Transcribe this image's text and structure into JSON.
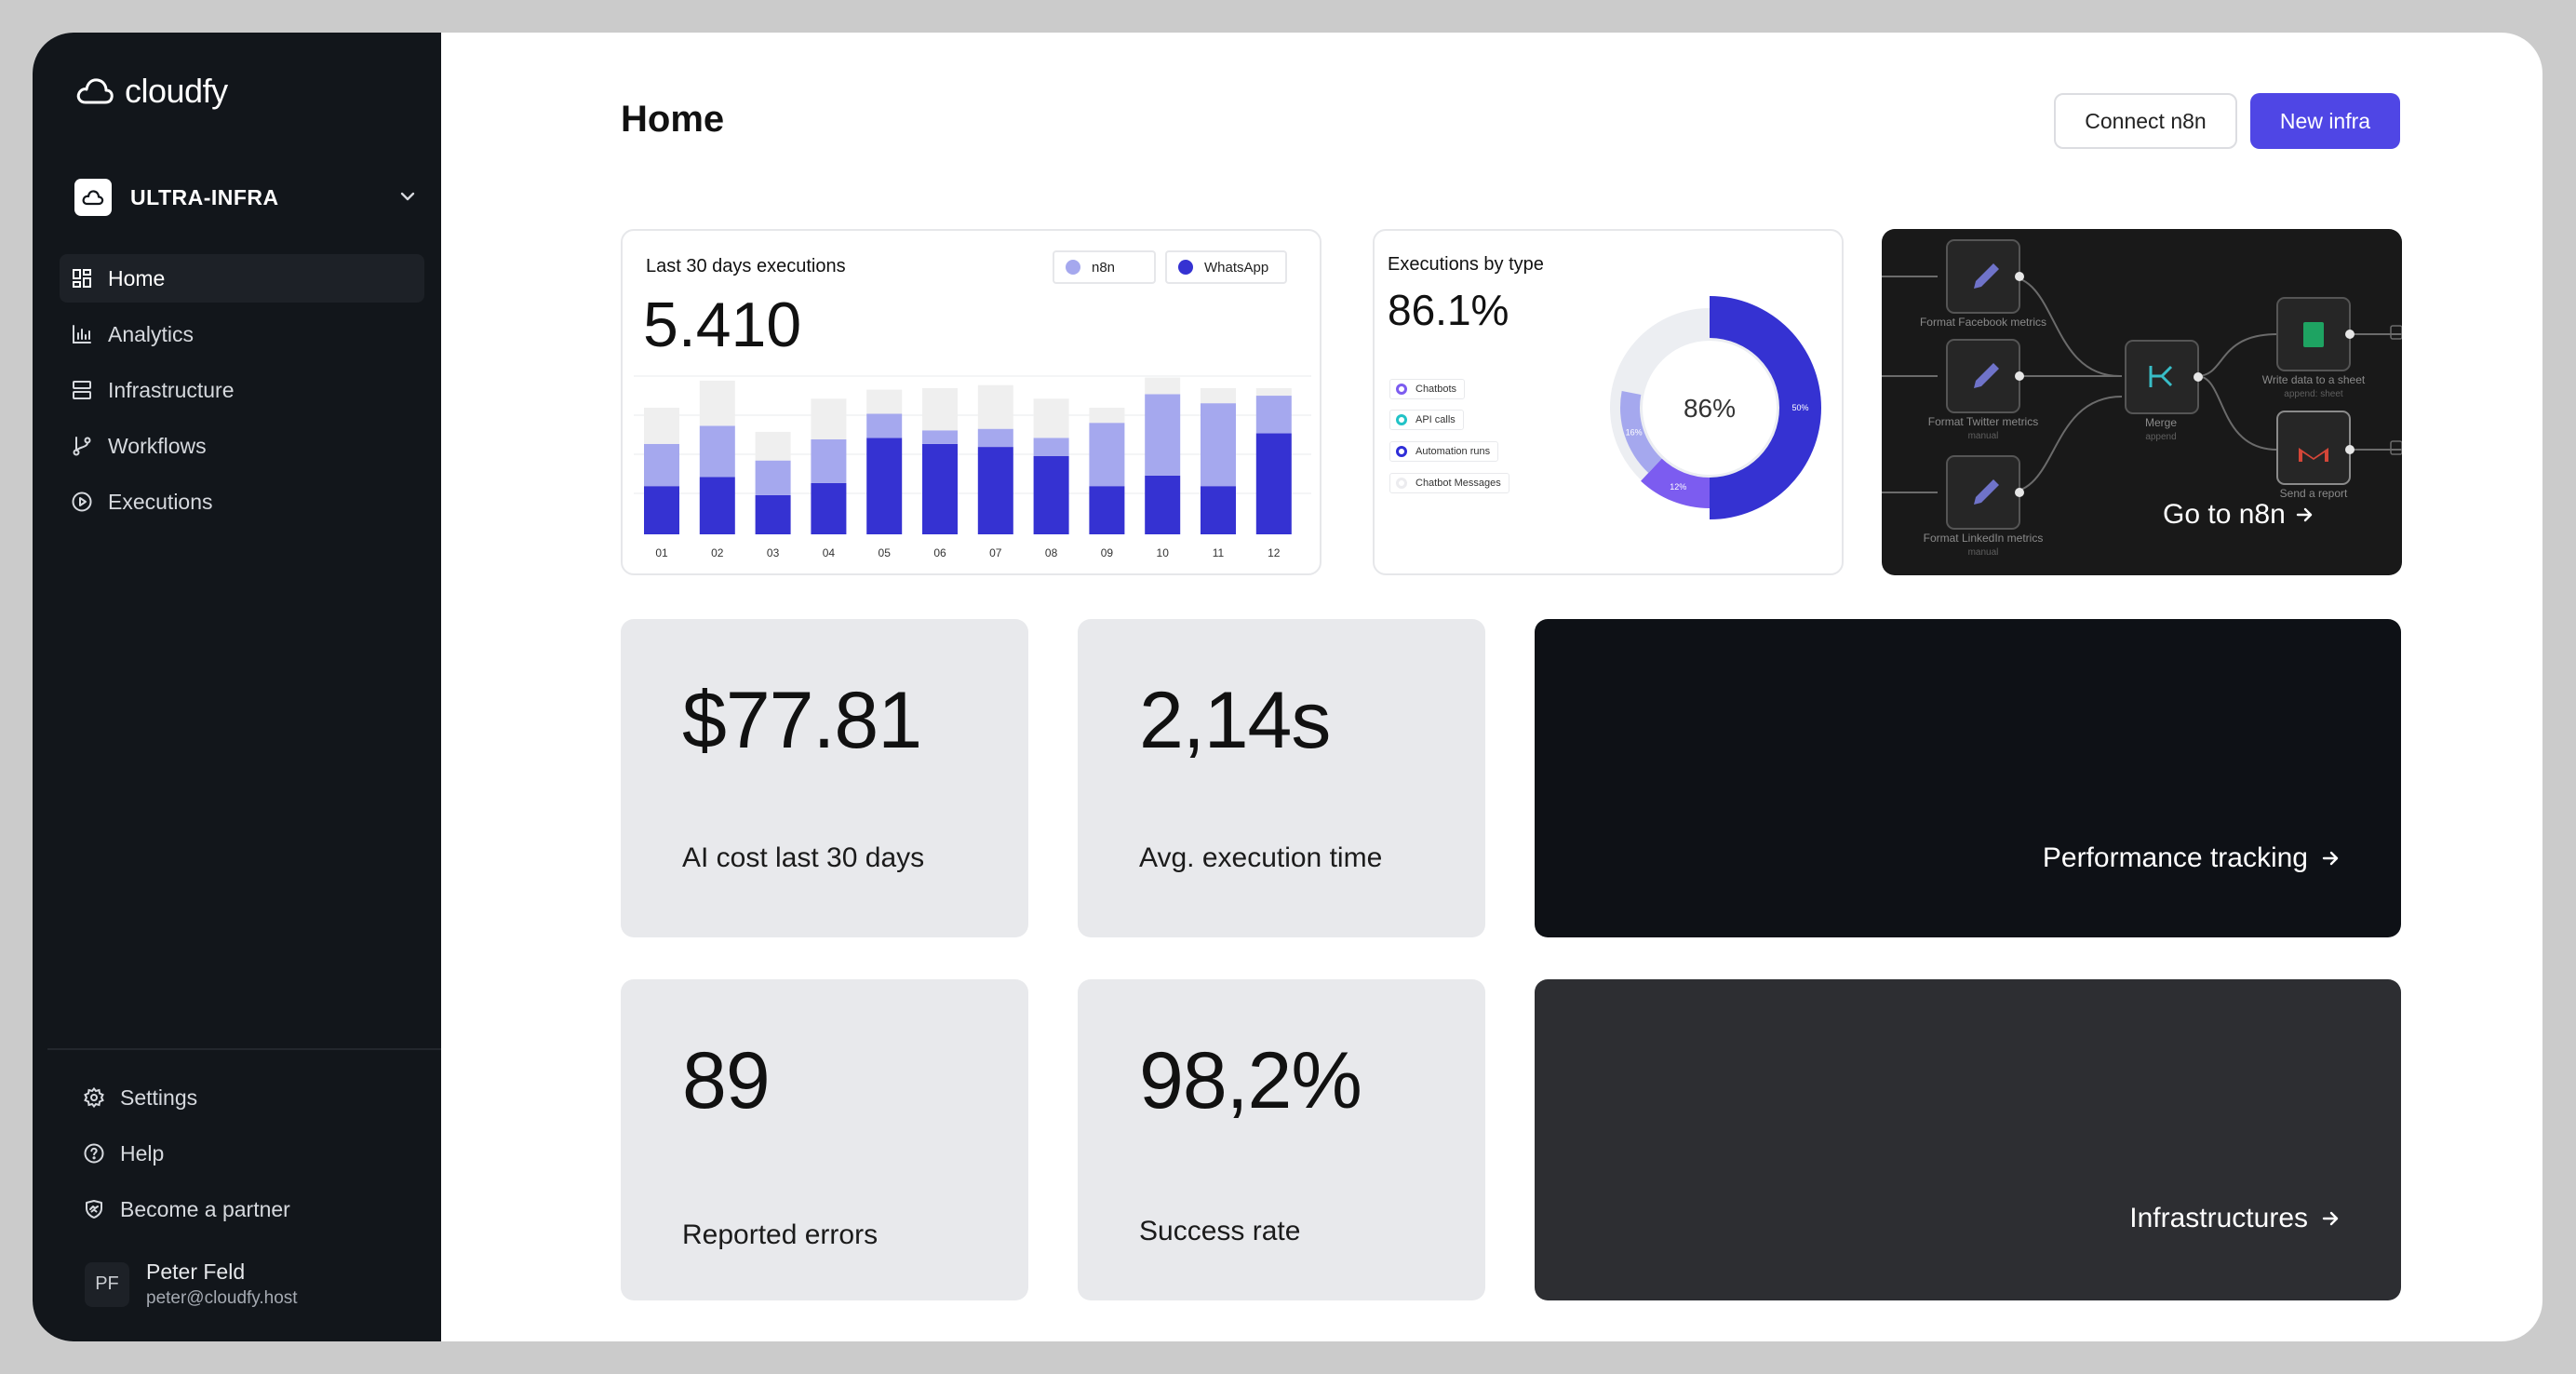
{
  "app": {
    "name": "cloudfy"
  },
  "org": {
    "name": "ULTRA-INFRA"
  },
  "nav": {
    "items": [
      {
        "label": "Home",
        "icon": "home-grid-icon",
        "active": true
      },
      {
        "label": "Analytics",
        "icon": "bar-chart-icon"
      },
      {
        "label": "Infrastructure",
        "icon": "server-icon"
      },
      {
        "label": "Workflows",
        "icon": "git-branch-icon"
      },
      {
        "label": "Executions",
        "icon": "play-circle-icon"
      }
    ],
    "bottom": [
      {
        "label": "Settings",
        "icon": "gear-icon"
      },
      {
        "label": "Help",
        "icon": "help-circle-icon"
      },
      {
        "label": "Become a partner",
        "icon": "handshake-icon"
      }
    ]
  },
  "user": {
    "initials": "PF",
    "name": "Peter Feld",
    "email": "peter@cloudfy.host"
  },
  "header": {
    "title": "Home",
    "connect_label": "Connect n8n",
    "new_label": "New infra"
  },
  "executions_card": {
    "title": "Last 30 days executions",
    "total": "5.410",
    "legend": [
      {
        "name": "n8n",
        "color": "#a5a8ee"
      },
      {
        "name": "WhatsApp",
        "color": "#3532d2"
      }
    ]
  },
  "types_card": {
    "title": "Executions by type",
    "value": "86.1%",
    "center_label": "86%",
    "legend": [
      {
        "name": "Chatbots",
        "color": "#7c5cf0"
      },
      {
        "name": "API calls",
        "color": "#22c3c7"
      },
      {
        "name": "Automation runs",
        "color": "#2f2ed8"
      },
      {
        "name": "Chatbot Messages",
        "color": "#e6e7ea"
      }
    ]
  },
  "n8n_card": {
    "cta": "Go to n8n",
    "nodes": {
      "facebook": "Format Facebook metrics",
      "twitter": "Format Twitter metrics",
      "twitter_sub": "manual",
      "linkedin": "Format LinkedIn metrics",
      "linkedin_sub": "manual",
      "merge": "Merge",
      "merge_sub": "append",
      "sheet": "Write data to a sheet",
      "sheet_sub": "append: sheet",
      "report": "Send a report"
    }
  },
  "stats": [
    {
      "value": "$77.81",
      "label": "AI cost last 30 days"
    },
    {
      "value": "2,14s",
      "label": "Avg. execution time"
    },
    {
      "value": "89",
      "label": "Reported errors"
    },
    {
      "value": "98,2%",
      "label": "Success rate"
    }
  ],
  "links": {
    "performance": "Performance tracking",
    "infrastructures": "Infrastructures"
  },
  "chart_data": [
    {
      "type": "bar",
      "categories": [
        "01",
        "02",
        "03",
        "04",
        "05",
        "06",
        "07",
        "08",
        "09",
        "10",
        "11",
        "12"
      ],
      "series": [
        {
          "name": "WhatsApp",
          "values": [
            32,
            38,
            26,
            34,
            64,
            60,
            58,
            52,
            32,
            39,
            32,
            67
          ],
          "color": "#3532d2"
        },
        {
          "name": "n8n",
          "values": [
            28,
            34,
            23,
            29,
            16,
            9,
            12,
            12,
            42,
            54,
            55,
            25
          ],
          "color": "#a5a8ee"
        },
        {
          "values": [
            24,
            30,
            19,
            27,
            16,
            28,
            29,
            26,
            10,
            11,
            10,
            5
          ],
          "color": "#efefef"
        }
      ],
      "ylim": [
        0,
        105
      ]
    },
    {
      "type": "pie",
      "labels": [
        "",
        "",
        ""
      ],
      "values": [
        50,
        12,
        16
      ],
      "slice_labels": [
        "50%",
        "12%",
        "16%"
      ],
      "colors": [
        "#3532d2",
        "#7c5cf0",
        "#a5a8ee"
      ],
      "track_color": "#eceef2"
    }
  ]
}
